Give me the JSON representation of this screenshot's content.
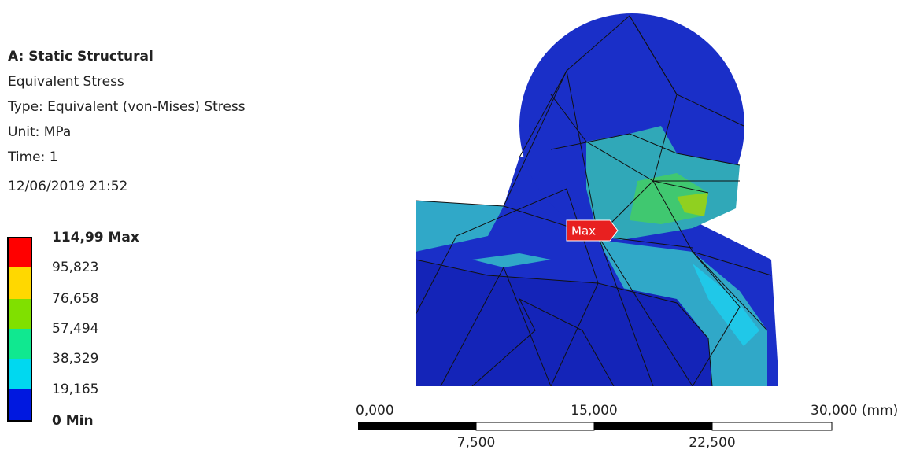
{
  "header": {
    "title": "A: Static Structural",
    "lines": [
      "Equivalent Stress",
      "Type: Equivalent (von-Mises) Stress",
      "Unit: MPa",
      "Time: 1",
      "12/06/2019 21:52"
    ]
  },
  "legend": {
    "labels": [
      "114,99 Max",
      "95,823",
      "76,658",
      "57,494",
      "38,329",
      "19,165",
      "0 Min"
    ]
  },
  "scale": {
    "top": [
      "0,000",
      "15,000",
      "30,000 (mm)"
    ],
    "bottom": [
      "7,500",
      "22,500"
    ]
  },
  "probe": {
    "label": "Max"
  }
}
